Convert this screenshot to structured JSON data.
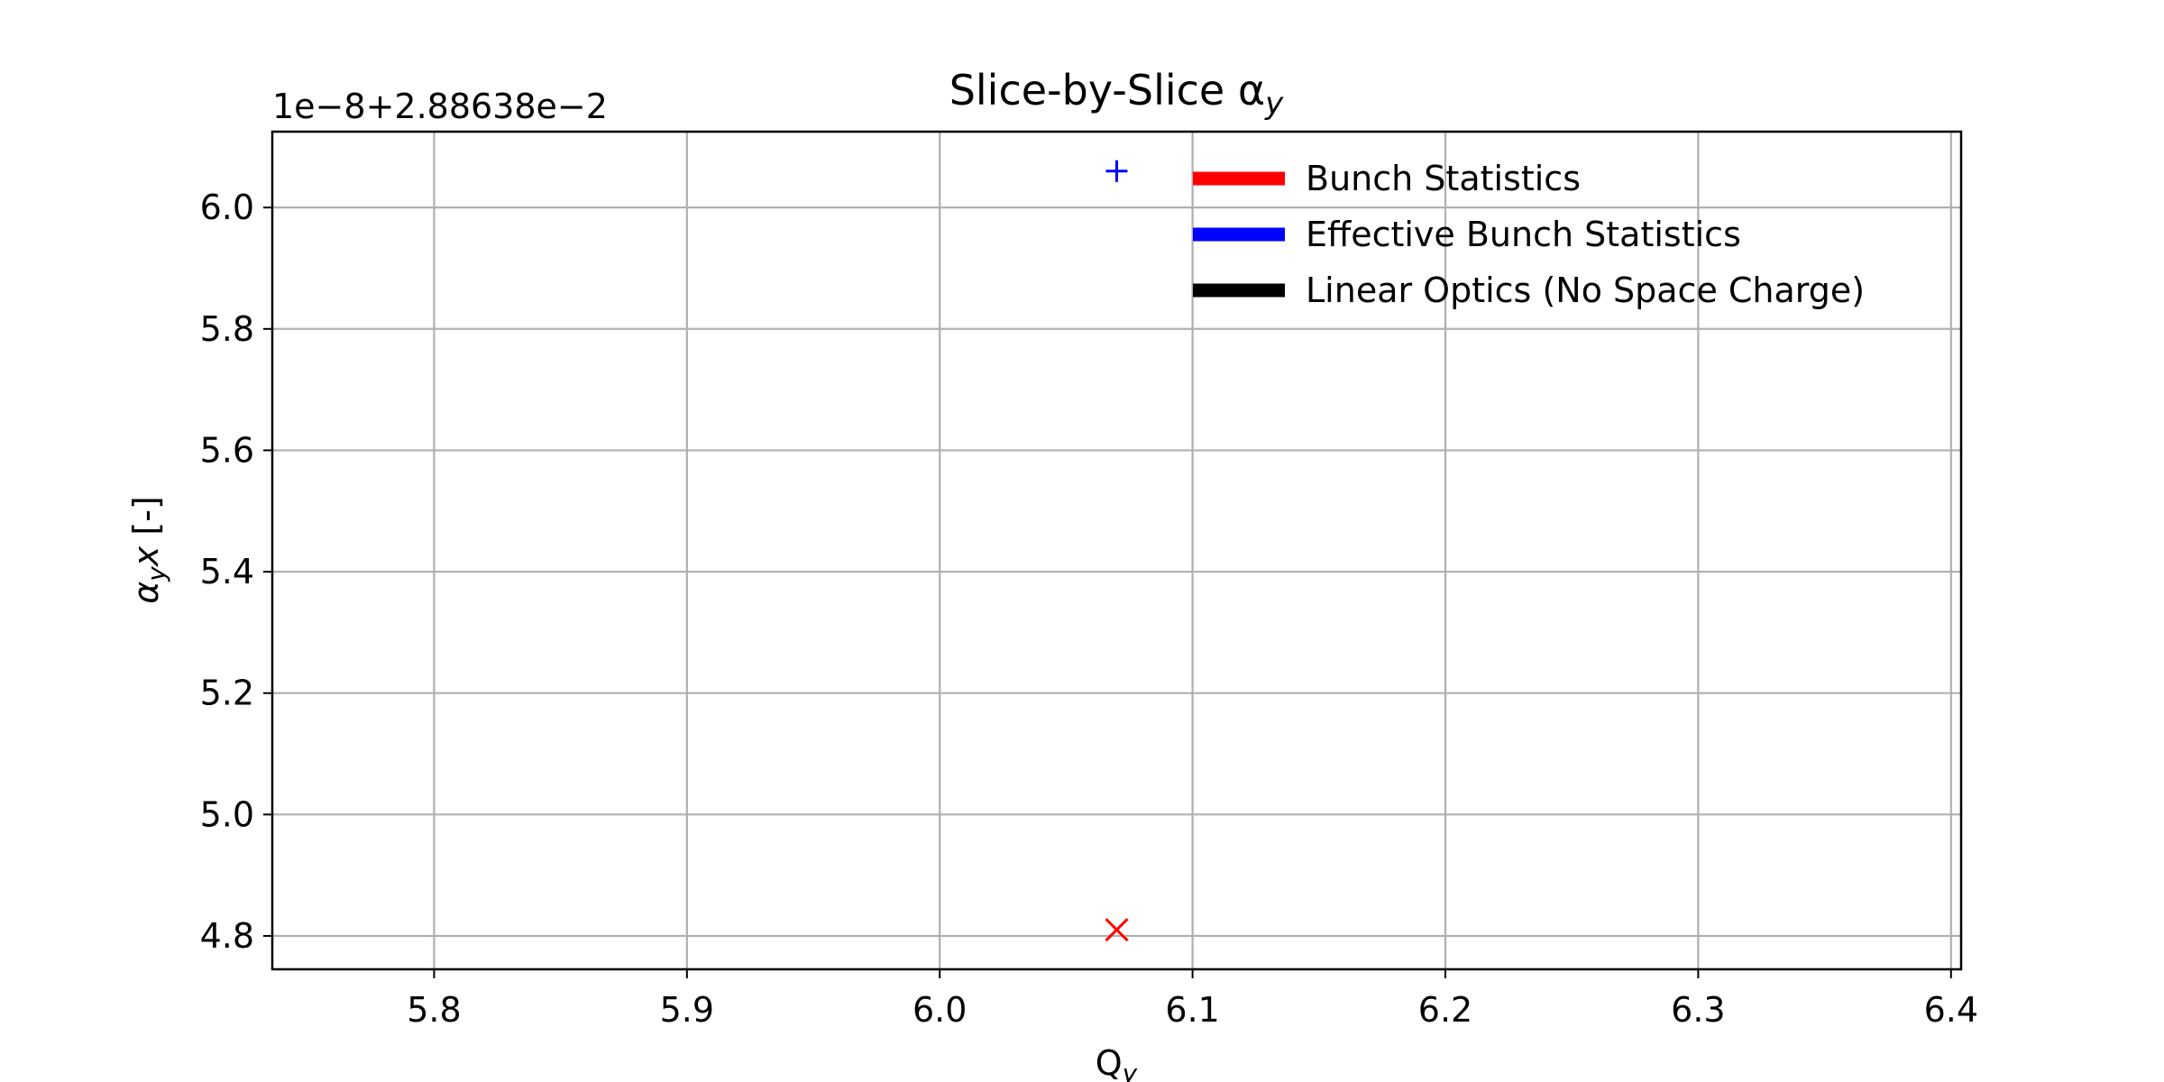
{
  "chart_data": {
    "type": "scatter",
    "title": "Slice-by-Slice α",
    "title_subscript": "y",
    "xlabel": "Q",
    "xlabel_subscript": "y",
    "ylabel": "α",
    "ylabel_subscript": "y",
    "ylabel_suffix": "x [-]",
    "y_offset_label": "1e−8+2.88638e−2",
    "xlim": [
      5.736,
      6.404
    ],
    "ylim": [
      4.745,
      6.125
    ],
    "x_ticks": [
      5.8,
      5.9,
      6.0,
      6.1,
      6.2,
      6.3,
      6.4
    ],
    "x_tick_labels": [
      "5.8",
      "5.9",
      "6.0",
      "6.1",
      "6.2",
      "6.3",
      "6.4"
    ],
    "y_ticks": [
      4.8,
      5.0,
      5.2,
      5.4,
      5.6,
      5.8,
      6.0
    ],
    "y_tick_labels": [
      "4.8",
      "5.0",
      "5.2",
      "5.4",
      "5.6",
      "5.8",
      "6.0"
    ],
    "grid": true,
    "legend_position": "top-right",
    "series": [
      {
        "name": "Bunch Statistics",
        "color": "#ff0000",
        "marker": "x",
        "x": [
          6.07
        ],
        "y": [
          4.81
        ]
      },
      {
        "name": "Effective Bunch Statistics",
        "color": "#0000ff",
        "marker": "+",
        "x": [
          6.07
        ],
        "y": [
          6.06
        ]
      },
      {
        "name": "Linear Optics (No Space Charge)",
        "color": "#000000",
        "marker": "none",
        "x": [],
        "y": []
      }
    ]
  }
}
